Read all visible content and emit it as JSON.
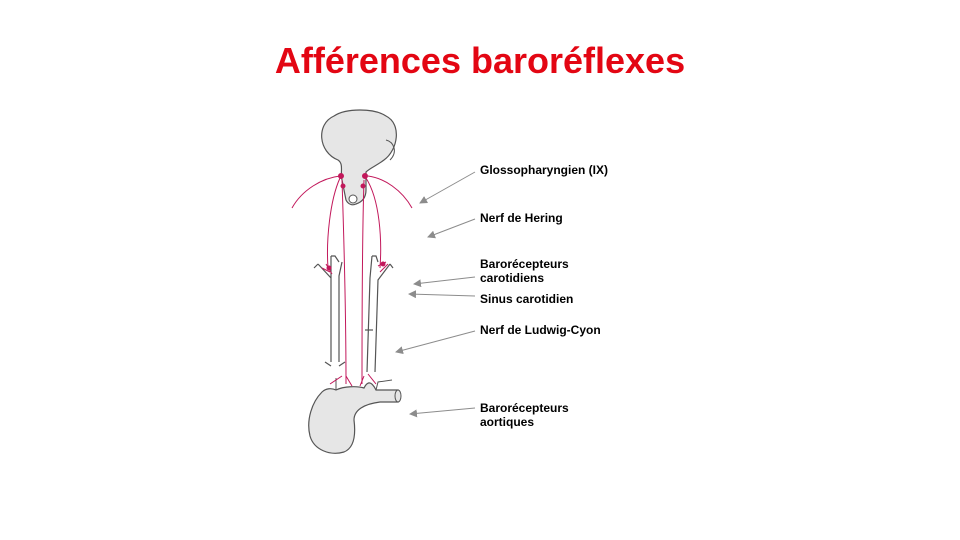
{
  "title": "Afférences baroréflexes",
  "colors": {
    "title": "#e30613",
    "nerve": "#c2185b",
    "outline": "#555555",
    "arrow": "#8c8c8c"
  },
  "labels": {
    "glossopharyngien": "Glossopharyngien  (IX)",
    "nerf_hering": "Nerf de Hering",
    "baro_carotidiens_1": "Barorécepteurs",
    "baro_carotidiens_2": "carotidiens",
    "sinus_carotidien": "Sinus carotidien",
    "nerf_ludwig_cyon": "Nerf de Ludwig-Cyon",
    "baro_aortiques_1": "Barorécepteurs",
    "baro_aortiques_2": "aortiques"
  }
}
